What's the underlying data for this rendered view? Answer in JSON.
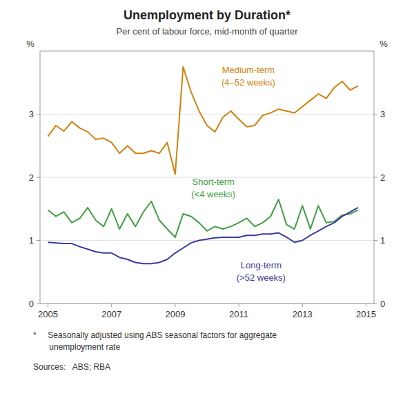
{
  "chart_data": {
    "type": "line",
    "title": "Unemployment by Duration*",
    "subtitle": "Per cent of labour force, mid-month of quarter",
    "y_label": "%",
    "y2_label": "%",
    "x": [
      2005.0,
      2005.25,
      2005.5,
      2005.75,
      2006.0,
      2006.25,
      2006.5,
      2006.75,
      2007.0,
      2007.25,
      2007.5,
      2007.75,
      2008.0,
      2008.25,
      2008.5,
      2008.75,
      2009.0,
      2009.25,
      2009.5,
      2009.75,
      2010.0,
      2010.25,
      2010.5,
      2010.75,
      2011.0,
      2011.25,
      2011.5,
      2011.75,
      2012.0,
      2012.25,
      2012.5,
      2012.75,
      2013.0,
      2013.25,
      2013.5,
      2013.75,
      2014.0,
      2014.25,
      2014.5,
      2014.75
    ],
    "series": [
      {
        "color": "#D4800A",
        "values": [
          2.65,
          2.82,
          2.73,
          2.88,
          2.78,
          2.72,
          2.6,
          2.62,
          2.55,
          2.38,
          2.5,
          2.38,
          2.38,
          2.42,
          2.38,
          2.55,
          2.05,
          3.75,
          3.35,
          3.05,
          2.82,
          2.72,
          2.95,
          3.05,
          2.92,
          2.8,
          2.82,
          2.98,
          3.02,
          3.08,
          3.05,
          3.02,
          3.12,
          3.22,
          3.32,
          3.25,
          3.42,
          3.52,
          3.38,
          3.45
        ]
      },
      {
        "color": "#3CA040",
        "values": [
          1.48,
          1.38,
          1.45,
          1.28,
          1.35,
          1.52,
          1.32,
          1.22,
          1.5,
          1.18,
          1.42,
          1.22,
          1.45,
          1.62,
          1.32,
          1.18,
          1.05,
          1.42,
          1.38,
          1.28,
          1.15,
          1.22,
          1.18,
          1.22,
          1.28,
          1.35,
          1.22,
          1.28,
          1.38,
          1.65,
          1.25,
          1.18,
          1.55,
          1.18,
          1.55,
          1.28,
          1.3,
          1.4,
          1.42,
          1.48
        ]
      },
      {
        "color": "#3B3B9E",
        "values": [
          0.97,
          0.96,
          0.95,
          0.95,
          0.9,
          0.86,
          0.82,
          0.8,
          0.8,
          0.73,
          0.7,
          0.65,
          0.63,
          0.63,
          0.65,
          0.7,
          0.8,
          0.88,
          0.96,
          1.0,
          1.02,
          1.04,
          1.05,
          1.05,
          1.05,
          1.08,
          1.08,
          1.1,
          1.1,
          1.12,
          1.05,
          0.97,
          1.0,
          1.08,
          1.15,
          1.22,
          1.28,
          1.38,
          1.45,
          1.52
        ]
      }
    ],
    "xlim": [
      2004.75,
      2015.25
    ],
    "xticks": [
      2005,
      2007,
      2009,
      2011,
      2013,
      2015
    ],
    "ylim": [
      0,
      4.0
    ],
    "yticks": [
      0,
      1,
      2,
      3
    ],
    "y2lim": [
      0,
      4.0
    ],
    "y2ticks": [
      0,
      1,
      2,
      3
    ],
    "grid": true,
    "annotations": [
      {
        "text": "Medium-term",
        "x": 2011.3,
        "y": 3.62,
        "color": "#D4800A"
      },
      {
        "text": "(4–52 weeks)",
        "x": 2011.3,
        "y": 3.42,
        "color": "#D4800A"
      },
      {
        "text": "Short-term",
        "x": 2010.2,
        "y": 1.85,
        "color": "#3CA040"
      },
      {
        "text": "(<4 weeks)",
        "x": 2010.2,
        "y": 1.65,
        "color": "#3CA040"
      },
      {
        "text": "Long-term",
        "x": 2011.7,
        "y": 0.52,
        "color": "#3B3B9E"
      },
      {
        "text": "(>52 weeks)",
        "x": 2011.7,
        "y": 0.33,
        "color": "#3B3B9E"
      }
    ],
    "notes": [
      "*     Seasonally adjusted using ABS seasonal factors for aggregate\n       unemployment rate",
      "Sources:   ABS; RBA"
    ]
  }
}
